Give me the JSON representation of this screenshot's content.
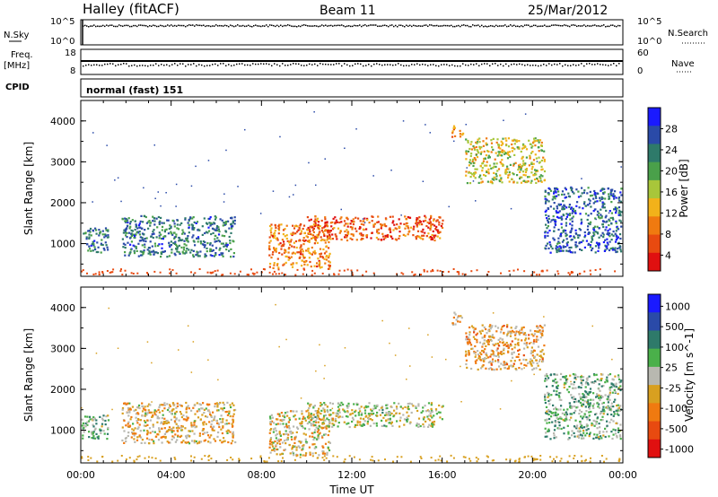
{
  "header": {
    "title": "Halley (fitACF)",
    "beam": "Beam 11",
    "date": "25/Mar/2012"
  },
  "status_panel": {
    "nsky_label": "N.Sky",
    "nsky_ticks": [
      "10^5",
      "10^0"
    ],
    "nsearch_label": "N.Search",
    "nsearch_ticks": [
      "10^5",
      "10^0"
    ],
    "freq_label_line1": "Freq.",
    "freq_label_line2": "[MHz]",
    "freq_ticks": [
      "18",
      "8"
    ],
    "nave_label": "Nave",
    "nave_ticks": [
      "60",
      "0"
    ],
    "cpid_label": "CPID",
    "cpid_text": "normal (fast) 151"
  },
  "colors": {
    "power_scale": [
      "#1a1aff",
      "#2a4aa8",
      "#2e7a6a",
      "#4aa04a",
      "#a8c63a",
      "#f2b21a",
      "#f07a10",
      "#e84a10",
      "#e01010"
    ],
    "velocity_scale": [
      "#1a1aff",
      "#2a4aa8",
      "#2e7a6a",
      "#4ab04a",
      "#b8b8b0",
      "#d8a020",
      "#f07a10",
      "#e84a10",
      "#e01010"
    ]
  },
  "chart_data": [
    {
      "type": "heatmap",
      "name": "power",
      "x": [
        "00:00",
        "04:00",
        "08:00",
        "12:00",
        "16:00",
        "20:00",
        "00:00"
      ],
      "xlabel": "",
      "ylabel": "Slant Range [km]",
      "yticks": [
        "1000",
        "2000",
        "3000",
        "4000"
      ],
      "ylim": [
        200,
        4500
      ],
      "xlim_hours": [
        0,
        24
      ],
      "colorbar_label": "Power [dB]",
      "colorbar_ticks": [
        "28",
        "24",
        "20",
        "16",
        "12",
        "8",
        "4"
      ],
      "clim": [
        0,
        30
      ],
      "echo_regions": [
        {
          "t": [
            0.0,
            1.2
          ],
          "range": [
            800,
            1400
          ],
          "value": 22
        },
        {
          "t": [
            1.8,
            6.8
          ],
          "range": [
            700,
            1700
          ],
          "value": 22
        },
        {
          "t": [
            8.3,
            11.0
          ],
          "range": [
            400,
            1500
          ],
          "value": 8
        },
        {
          "t": [
            10.0,
            16.0
          ],
          "range": [
            1100,
            1700
          ],
          "value": 6
        },
        {
          "t": [
            17.0,
            20.5
          ],
          "range": [
            2500,
            3600
          ],
          "value": 14
        },
        {
          "t": [
            20.5,
            23.9
          ],
          "range": [
            800,
            2400
          ],
          "value": 24
        },
        {
          "t": [
            16.4,
            16.9
          ],
          "range": [
            3600,
            3900
          ],
          "value": 8
        }
      ]
    },
    {
      "type": "heatmap",
      "name": "velocity",
      "x": [
        "00:00",
        "04:00",
        "08:00",
        "12:00",
        "16:00",
        "20:00",
        "00:00"
      ],
      "xlabel": "Time UT",
      "ylabel": "Slant Range [km]",
      "yticks": [
        "1000",
        "2000",
        "3000",
        "4000"
      ],
      "ylim": [
        200,
        4500
      ],
      "xlim_hours": [
        0,
        24
      ],
      "colorbar_label": "Velocity [m s^-1]",
      "colorbar_ticks": [
        "1000",
        "500",
        "100",
        "25",
        "-25",
        "-100",
        "-500",
        "-1000"
      ],
      "clim": [
        -1000,
        1000
      ],
      "echo_regions": [
        {
          "t": [
            0.0,
            1.2
          ],
          "range": [
            800,
            1400
          ],
          "value": 200
        },
        {
          "t": [
            1.8,
            6.8
          ],
          "range": [
            700,
            1700
          ],
          "value": -200
        },
        {
          "t": [
            8.3,
            11.0
          ],
          "range": [
            400,
            1500
          ],
          "value": -150
        },
        {
          "t": [
            10.0,
            16.0
          ],
          "range": [
            1100,
            1700
          ],
          "value": 0
        },
        {
          "t": [
            17.0,
            20.5
          ],
          "range": [
            2500,
            3600
          ],
          "value": -250
        },
        {
          "t": [
            20.5,
            23.9
          ],
          "range": [
            800,
            2400
          ],
          "value": 200
        },
        {
          "t": [
            16.4,
            16.9
          ],
          "range": [
            3600,
            3900
          ],
          "value": -200
        }
      ]
    }
  ]
}
